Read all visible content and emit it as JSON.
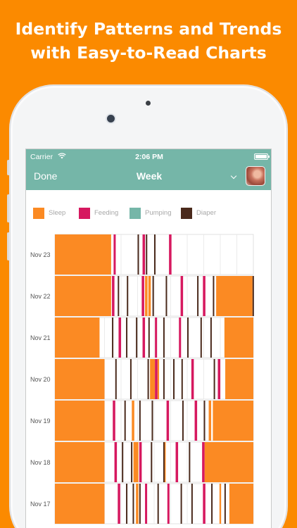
{
  "headline": {
    "line1": "Identify Patterns and Trends",
    "line2": "with Easy-to-Read Charts"
  },
  "status": {
    "carrier": "Carrier",
    "time": "2:06 PM"
  },
  "nav": {
    "done_label": "Done",
    "title": "Week"
  },
  "legend": [
    {
      "label": "Sleep",
      "color": "#fb8a23"
    },
    {
      "label": "Feeding",
      "color": "#d6185f"
    },
    {
      "label": "Pumping",
      "color": "#75b6a8"
    },
    {
      "label": "Diaper",
      "color": "#4a2a1c"
    }
  ],
  "chart_data": {
    "type": "timeline",
    "x_range": [
      0,
      24
    ],
    "rows": [
      {
        "label": "Nov 23",
        "sleep": [
          [
            0,
            6.8
          ]
        ],
        "feeding": [
          [
            7.1,
            7.25
          ],
          [
            10.6,
            10.9
          ],
          [
            13.8,
            14.1
          ]
        ],
        "diaper": [
          [
            10.0,
            10.1
          ],
          [
            11.0,
            11.1
          ],
          [
            12.0,
            12.1
          ]
        ],
        "pumping": []
      },
      {
        "label": "Nov 22",
        "sleep": [
          [
            0,
            6.8
          ],
          [
            10.9,
            11.2
          ],
          [
            11.3,
            11.6
          ],
          [
            19.5,
            23.9
          ]
        ],
        "feeding": [
          [
            6.9,
            7.2
          ],
          [
            10.5,
            10.8
          ],
          [
            15.2,
            15.5
          ],
          [
            17.9,
            18.2
          ]
        ],
        "diaper": [
          [
            7.6,
            7.7
          ],
          [
            8.7,
            8.8
          ],
          [
            11.8,
            11.9
          ],
          [
            13.4,
            13.5
          ],
          [
            17.2,
            17.3
          ],
          [
            19.1,
            19.2
          ],
          [
            23.9,
            24.0
          ]
        ],
        "pumping": []
      },
      {
        "label": "Nov 21",
        "sleep": [
          [
            0,
            5.4
          ],
          [
            20.5,
            24
          ]
        ],
        "feeding": [
          [
            7.7,
            8.0
          ],
          [
            10.6,
            10.9
          ],
          [
            12.1,
            12.3
          ],
          [
            15.0,
            15.2
          ]
        ],
        "diaper": [
          [
            6.9,
            7.0
          ],
          [
            8.6,
            8.7
          ],
          [
            9.8,
            9.9
          ],
          [
            11.3,
            11.4
          ],
          [
            13.1,
            13.2
          ],
          [
            16.0,
            16.1
          ],
          [
            17.6,
            17.7
          ],
          [
            18.8,
            18.9
          ]
        ],
        "pumping": []
      },
      {
        "label": "Nov 20",
        "sleep": [
          [
            0,
            6.0
          ],
          [
            11.5,
            12.1
          ],
          [
            12.4,
            12.6
          ],
          [
            20.6,
            24
          ]
        ],
        "feeding": [
          [
            12.1,
            12.4
          ],
          [
            16.5,
            16.8
          ],
          [
            19.7,
            20.0
          ]
        ],
        "diaper": [
          [
            7.3,
            7.4
          ],
          [
            9.1,
            9.2
          ],
          [
            11.2,
            11.3
          ],
          [
            13.1,
            13.2
          ],
          [
            14.3,
            14.4
          ],
          [
            15.3,
            15.4
          ],
          [
            19.2,
            19.3
          ]
        ],
        "pumping": []
      },
      {
        "label": "Nov 19",
        "sleep": [
          [
            0,
            6.0
          ],
          [
            9.3,
            9.6
          ],
          [
            18.6,
            18.9
          ],
          [
            19.1,
            24
          ]
        ],
        "feeding": [
          [
            7.0,
            7.3
          ],
          [
            13.5,
            13.8
          ],
          [
            16.9,
            17.2
          ]
        ],
        "diaper": [
          [
            8.4,
            8.5
          ],
          [
            10.2,
            10.3
          ],
          [
            11.7,
            11.8
          ],
          [
            15.4,
            15.5
          ],
          [
            18.0,
            18.1
          ]
        ],
        "pumping": []
      },
      {
        "label": "Nov 18",
        "sleep": [
          [
            0,
            6.0
          ],
          [
            9.5,
            10.1
          ],
          [
            13.2,
            13.4
          ],
          [
            18.1,
            24
          ]
        ],
        "feeding": [
          [
            7.2,
            7.5
          ],
          [
            10.2,
            10.5
          ],
          [
            14.6,
            14.9
          ],
          [
            17.8,
            18.1
          ]
        ],
        "diaper": [
          [
            8.1,
            8.2
          ],
          [
            9.2,
            9.3
          ],
          [
            11.6,
            11.7
          ],
          [
            13.1,
            13.2
          ],
          [
            16.2,
            16.3
          ]
        ],
        "pumping": []
      },
      {
        "label": "Nov 17",
        "sleep": [
          [
            0,
            6.0
          ],
          [
            9.8,
            10.1
          ],
          [
            19.9,
            20.1
          ],
          [
            21.1,
            24
          ]
        ],
        "feeding": [
          [
            7.6,
            7.9
          ],
          [
            10.9,
            11.1
          ],
          [
            13.6,
            13.8
          ],
          [
            17.9,
            18.2
          ]
        ],
        "diaper": [
          [
            8.6,
            8.7
          ],
          [
            9.4,
            9.5
          ],
          [
            10.2,
            10.3
          ],
          [
            12.4,
            12.5
          ],
          [
            15.2,
            15.3
          ],
          [
            16.5,
            16.6
          ],
          [
            18.9,
            19.0
          ],
          [
            20.5,
            20.6
          ]
        ],
        "pumping": []
      }
    ]
  }
}
